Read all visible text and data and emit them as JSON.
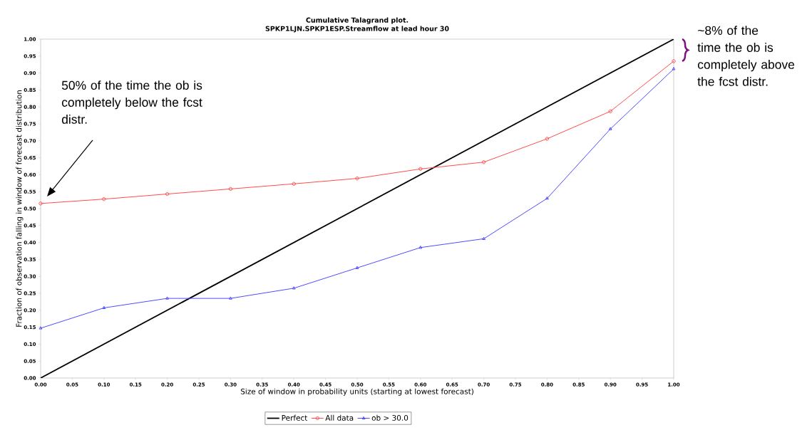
{
  "chart_data": {
    "type": "line",
    "title": "Cumulative Talagrand plot.",
    "subtitle": "SPKP1LJN.SPKP1ESP.Streamflow at lead hour 30",
    "xlabel": "Size of window in probability units (starting at lowest forecast)",
    "ylabel": "Fraction of observation falling in window of forecast distribution",
    "x": [
      0,
      0.1,
      0.2,
      0.3,
      0.4,
      0.5,
      0.6,
      0.7,
      0.8,
      0.9,
      1.0
    ],
    "series": [
      {
        "name": "Perfect",
        "color": "#000000",
        "marker": "none",
        "x": [
          0,
          1
        ],
        "values": [
          0,
          1
        ]
      },
      {
        "name": "All data",
        "color": "#ff4c4c",
        "marker": "circle",
        "values": [
          0.515,
          0.528,
          0.543,
          0.558,
          0.573,
          0.589,
          0.617,
          0.637,
          0.706,
          0.787,
          0.935
        ]
      },
      {
        "name": "ob > 30.0",
        "color": "#4c4cff",
        "marker": "triangle",
        "values": [
          0.147,
          0.207,
          0.235,
          0.235,
          0.265,
          0.325,
          0.385,
          0.411,
          0.53,
          0.735,
          0.912
        ]
      }
    ],
    "xlim": [
      0,
      1
    ],
    "ylim": [
      0,
      1
    ],
    "xticks": [
      {
        "value": 0,
        "label": "0.00"
      },
      {
        "value": 0.05,
        "label": "0.05"
      },
      {
        "value": 0.1,
        "label": "0.10"
      },
      {
        "value": 0.15,
        "label": "0.15"
      },
      {
        "value": 0.2,
        "label": "0.20"
      },
      {
        "value": 0.25,
        "label": "0.25"
      },
      {
        "value": 0.3,
        "label": "0.30"
      },
      {
        "value": 0.35,
        "label": "0.35"
      },
      {
        "value": 0.4,
        "label": "0.40"
      },
      {
        "value": 0.45,
        "label": "0.45"
      },
      {
        "value": 0.5,
        "label": "0.50"
      },
      {
        "value": 0.55,
        "label": "0.55"
      },
      {
        "value": 0.6,
        "label": "0.60"
      },
      {
        "value": 0.65,
        "label": "0.65"
      },
      {
        "value": 0.7,
        "label": "0.70"
      },
      {
        "value": 0.75,
        "label": "0.75"
      },
      {
        "value": 0.8,
        "label": "0.80"
      },
      {
        "value": 0.85,
        "label": "0.85"
      },
      {
        "value": 0.9,
        "label": "0.90"
      },
      {
        "value": 0.95,
        "label": "0.95"
      },
      {
        "value": 1.0,
        "label": "1.00"
      }
    ],
    "yticks": [
      {
        "value": 0,
        "label": "0.00"
      },
      {
        "value": 0.05,
        "label": "0.05"
      },
      {
        "value": 0.1,
        "label": "0.10"
      },
      {
        "value": 0.15,
        "label": "0.15"
      },
      {
        "value": 0.2,
        "label": "0.20"
      },
      {
        "value": 0.25,
        "label": "0.25"
      },
      {
        "value": 0.3,
        "label": "0.30"
      },
      {
        "value": 0.35,
        "label": "0.35"
      },
      {
        "value": 0.4,
        "label": "0.40"
      },
      {
        "value": 0.45,
        "label": "0.45"
      },
      {
        "value": 0.5,
        "label": "0.50"
      },
      {
        "value": 0.55,
        "label": "0.55"
      },
      {
        "value": 0.6,
        "label": "0.60"
      },
      {
        "value": 0.65,
        "label": "0.65"
      },
      {
        "value": 0.7,
        "label": "0.70"
      },
      {
        "value": 0.75,
        "label": "0.75"
      },
      {
        "value": 0.8,
        "label": "0.80"
      },
      {
        "value": 0.85,
        "label": "0.85"
      },
      {
        "value": 0.9,
        "label": "0.90"
      },
      {
        "value": 0.95,
        "label": "0.95"
      },
      {
        "value": 1.0,
        "label": "1.00"
      }
    ],
    "grid": false,
    "legend": "bottom",
    "line_style": "solid",
    "annotations": [
      "50% of the time the ob is completely below the fcst distr.",
      "~8% of the time the ob is completely above the fcst distr."
    ]
  }
}
